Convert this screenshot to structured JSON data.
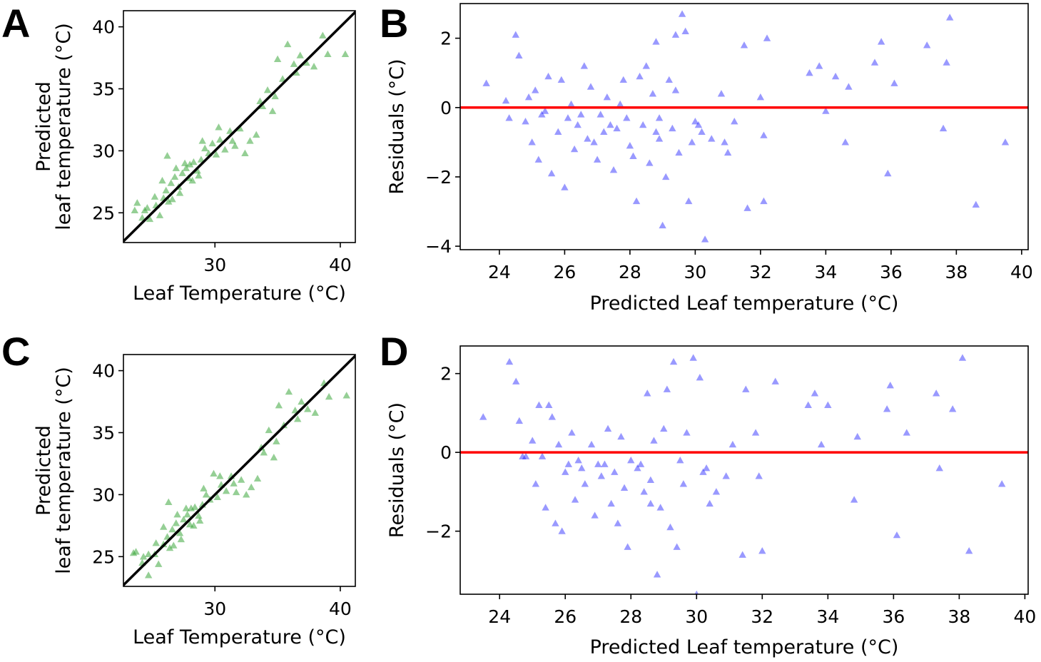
{
  "figure": {
    "colors": {
      "observed_marker": "#2ca02c",
      "residual_marker": "#0000ff",
      "zero_line": "#ff0000",
      "identity_line": "#000000"
    }
  },
  "chart_data": [
    {
      "id": "A",
      "panel_label": "A",
      "type": "scatter",
      "xlabel": "Leaf Temperature (°C)",
      "ylabel": [
        "Predicted",
        "leaf temperature (°C)"
      ],
      "xlim": [
        22.7,
        41.2
      ],
      "ylim": [
        22.6,
        41.3
      ],
      "xticks": [
        30,
        40
      ],
      "yticks": [
        25,
        30,
        35,
        40
      ],
      "marker": "triangle",
      "reference_line": {
        "kind": "identity",
        "x": [
          22.7,
          41.2
        ],
        "y": [
          22.7,
          41.2
        ]
      },
      "points": [
        [
          23.8,
          25.8
        ],
        [
          24.4,
          25.2
        ],
        [
          24.8,
          24.5
        ],
        [
          25.3,
          25.6
        ],
        [
          25.6,
          24.8
        ],
        [
          25.9,
          26.2
        ],
        [
          26.1,
          26.8
        ],
        [
          26.3,
          25.9
        ],
        [
          26.5,
          27.4
        ],
        [
          26.8,
          27.9
        ],
        [
          27.1,
          27.1
        ],
        [
          27.4,
          28.2
        ],
        [
          27.7,
          28.6
        ],
        [
          28.0,
          28.9
        ],
        [
          28.3,
          29.1
        ],
        [
          28.6,
          28.4
        ],
        [
          28.9,
          29.3
        ],
        [
          29.2,
          30.2
        ],
        [
          29.5,
          29.8
        ],
        [
          29.8,
          30.6
        ],
        [
          30.1,
          29.7
        ],
        [
          30.4,
          30.9
        ],
        [
          30.8,
          30.1
        ],
        [
          31.2,
          31.6
        ],
        [
          31.6,
          30.4
        ],
        [
          32.0,
          31.8
        ],
        [
          32.4,
          29.8
        ],
        [
          32.8,
          30.8
        ],
        [
          33.3,
          31.3
        ],
        [
          33.8,
          33.6
        ],
        [
          34.2,
          34.9
        ],
        [
          34.6,
          33.2
        ],
        [
          35.0,
          37.4
        ],
        [
          35.4,
          35.8
        ],
        [
          35.8,
          38.6
        ],
        [
          36.3,
          37.0
        ],
        [
          36.8,
          37.7
        ],
        [
          37.3,
          37.1
        ],
        [
          37.9,
          36.8
        ],
        [
          38.6,
          39.3
        ],
        [
          39.0,
          37.8
        ],
        [
          40.4,
          37.8
        ],
        [
          36.5,
          36.3
        ],
        [
          34.8,
          34.4
        ],
        [
          33.6,
          34.0
        ],
        [
          26.6,
          26.1
        ],
        [
          27.2,
          26.6
        ],
        [
          27.9,
          27.8
        ],
        [
          28.7,
          28.0
        ],
        [
          25.2,
          26.3
        ],
        [
          24.6,
          25.4
        ],
        [
          25.8,
          27.6
        ],
        [
          26.9,
          28.6
        ],
        [
          28.2,
          27.6
        ],
        [
          29.0,
          30.8
        ],
        [
          30.3,
          31.9
        ],
        [
          31.4,
          30.8
        ],
        [
          26.2,
          29.6
        ],
        [
          27.6,
          29.0
        ],
        [
          24.2,
          24.6
        ],
        [
          23.6,
          25.2
        ]
      ]
    },
    {
      "id": "B",
      "panel_label": "B",
      "type": "scatter",
      "xlabel": "Predicted Leaf temperature (°C)",
      "ylabel": [
        "Residuals (°C)"
      ],
      "xlim": [
        22.8,
        40.2
      ],
      "ylim": [
        -4.1,
        3.0
      ],
      "xticks": [
        24,
        26,
        28,
        30,
        32,
        34,
        36,
        38,
        40
      ],
      "yticks": [
        -4,
        -2,
        0,
        2
      ],
      "ytick_labels": [
        "−4",
        "−2",
        "0",
        "2"
      ],
      "marker": "triangle",
      "reference_line": {
        "kind": "zero",
        "y": 0
      },
      "points": [
        [
          23.6,
          0.7
        ],
        [
          24.2,
          0.2
        ],
        [
          24.5,
          2.1
        ],
        [
          24.6,
          1.5
        ],
        [
          24.8,
          -0.4
        ],
        [
          25.0,
          -1.0
        ],
        [
          25.1,
          0.5
        ],
        [
          25.3,
          -0.2
        ],
        [
          25.5,
          0.9
        ],
        [
          25.6,
          -1.9
        ],
        [
          25.8,
          -0.7
        ],
        [
          25.9,
          0.8
        ],
        [
          26.0,
          -2.3
        ],
        [
          26.2,
          0.1
        ],
        [
          26.3,
          -1.2
        ],
        [
          26.4,
          -0.5
        ],
        [
          26.6,
          1.2
        ],
        [
          26.7,
          -0.9
        ],
        [
          26.8,
          0.6
        ],
        [
          27.0,
          -1.5
        ],
        [
          27.1,
          -0.2
        ],
        [
          27.2,
          -0.7
        ],
        [
          27.3,
          0.3
        ],
        [
          27.5,
          -1.8
        ],
        [
          27.6,
          -0.6
        ],
        [
          27.8,
          0.8
        ],
        [
          27.9,
          -0.3
        ],
        [
          28.0,
          -1.1
        ],
        [
          28.1,
          -1.4
        ],
        [
          28.2,
          -2.7
        ],
        [
          28.3,
          0.9
        ],
        [
          28.4,
          -0.5
        ],
        [
          28.5,
          1.2
        ],
        [
          28.6,
          -1.6
        ],
        [
          28.7,
          0.4
        ],
        [
          28.8,
          1.9
        ],
        [
          28.9,
          -0.9
        ],
        [
          29.0,
          -3.4
        ],
        [
          29.1,
          -2.0
        ],
        [
          29.2,
          0.8
        ],
        [
          29.3,
          -0.6
        ],
        [
          29.4,
          2.1
        ],
        [
          29.5,
          -1.3
        ],
        [
          29.6,
          2.7
        ],
        [
          29.7,
          2.2
        ],
        [
          29.8,
          -2.7
        ],
        [
          30.0,
          -0.4
        ],
        [
          30.2,
          -0.7
        ],
        [
          30.3,
          -3.8
        ],
        [
          30.5,
          -0.9
        ],
        [
          30.8,
          0.4
        ],
        [
          31.0,
          -1.3
        ],
        [
          31.2,
          -0.4
        ],
        [
          31.5,
          1.8
        ],
        [
          31.6,
          -2.9
        ],
        [
          32.0,
          0.3
        ],
        [
          32.1,
          -0.8
        ],
        [
          32.2,
          2.0
        ],
        [
          32.1,
          -2.7
        ],
        [
          33.5,
          1.0
        ],
        [
          33.8,
          1.2
        ],
        [
          34.0,
          -0.1
        ],
        [
          34.3,
          0.9
        ],
        [
          34.6,
          -1.0
        ],
        [
          34.7,
          0.6
        ],
        [
          35.5,
          1.3
        ],
        [
          35.7,
          1.9
        ],
        [
          35.9,
          -1.9
        ],
        [
          36.1,
          0.7
        ],
        [
          37.1,
          1.8
        ],
        [
          37.6,
          -0.6
        ],
        [
          37.7,
          1.3
        ],
        [
          37.8,
          2.6
        ],
        [
          38.6,
          -2.8
        ],
        [
          39.5,
          -1.0
        ],
        [
          24.9,
          0.3
        ],
        [
          25.4,
          -0.1
        ],
        [
          26.5,
          -0.2
        ],
        [
          27.4,
          -0.5
        ],
        [
          28.8,
          -0.7
        ],
        [
          29.9,
          -1.0
        ],
        [
          24.3,
          -0.3
        ],
        [
          26.1,
          -0.3
        ],
        [
          27.7,
          0.1
        ],
        [
          28.9,
          -0.3
        ],
        [
          29.4,
          0.5
        ],
        [
          30.1,
          -0.5
        ],
        [
          30.9,
          -1.0
        ],
        [
          25.2,
          -1.5
        ],
        [
          26.9,
          -1.0
        ]
      ]
    },
    {
      "id": "C",
      "panel_label": "C",
      "type": "scatter",
      "xlabel": "Leaf Temperature (°C)",
      "ylabel": [
        "Predicted",
        "leaf temperature (°C)"
      ],
      "xlim": [
        22.7,
        41.2
      ],
      "ylim": [
        22.6,
        41.3
      ],
      "xticks": [
        30,
        40
      ],
      "yticks": [
        25,
        30,
        35,
        40
      ],
      "marker": "triangle",
      "reference_line": {
        "kind": "identity",
        "x": [
          22.7,
          41.2
        ],
        "y": [
          22.7,
          41.2
        ]
      },
      "points": [
        [
          23.7,
          25.4
        ],
        [
          24.3,
          25.0
        ],
        [
          24.7,
          23.5
        ],
        [
          25.2,
          25.2
        ],
        [
          25.5,
          24.4
        ],
        [
          25.9,
          26.0
        ],
        [
          26.2,
          26.6
        ],
        [
          26.4,
          25.7
        ],
        [
          26.6,
          27.2
        ],
        [
          26.9,
          27.7
        ],
        [
          27.2,
          26.9
        ],
        [
          27.5,
          28.0
        ],
        [
          27.8,
          28.4
        ],
        [
          28.1,
          28.9
        ],
        [
          28.4,
          29.0
        ],
        [
          28.7,
          28.3
        ],
        [
          29.0,
          29.2
        ],
        [
          29.3,
          30.0
        ],
        [
          29.6,
          29.6
        ],
        [
          29.9,
          31.7
        ],
        [
          30.2,
          29.8
        ],
        [
          30.5,
          30.8
        ],
        [
          30.9,
          30.3
        ],
        [
          31.3,
          31.5
        ],
        [
          31.7,
          30.2
        ],
        [
          32.1,
          31.2
        ],
        [
          32.5,
          30.0
        ],
        [
          32.9,
          30.6
        ],
        [
          33.4,
          31.3
        ],
        [
          33.9,
          33.4
        ],
        [
          34.3,
          35.2
        ],
        [
          34.7,
          33.0
        ],
        [
          35.1,
          37.2
        ],
        [
          35.5,
          35.6
        ],
        [
          35.9,
          38.3
        ],
        [
          36.4,
          36.8
        ],
        [
          36.9,
          37.5
        ],
        [
          37.4,
          36.9
        ],
        [
          38.0,
          36.6
        ],
        [
          38.7,
          39.0
        ],
        [
          39.1,
          37.9
        ],
        [
          40.5,
          38.0
        ],
        [
          36.6,
          36.1
        ],
        [
          34.9,
          34.3
        ],
        [
          33.7,
          33.8
        ],
        [
          26.7,
          25.9
        ],
        [
          27.3,
          26.4
        ],
        [
          28.0,
          27.6
        ],
        [
          28.8,
          27.9
        ],
        [
          25.3,
          26.1
        ],
        [
          24.7,
          25.2
        ],
        [
          25.9,
          27.4
        ],
        [
          27.0,
          28.4
        ],
        [
          28.3,
          27.5
        ],
        [
          29.1,
          30.5
        ],
        [
          30.4,
          31.5
        ],
        [
          31.5,
          30.9
        ],
        [
          26.3,
          29.4
        ],
        [
          27.7,
          28.9
        ],
        [
          24.2,
          24.5
        ],
        [
          23.5,
          25.3
        ]
      ]
    },
    {
      "id": "D",
      "panel_label": "D",
      "type": "scatter",
      "xlabel": "Predicted Leaf temperature (°C)",
      "ylabel": [
        "Residuals (°C)"
      ],
      "xlim": [
        22.8,
        40.1
      ],
      "ylim": [
        -3.6,
        2.7
      ],
      "xticks": [
        24,
        26,
        28,
        30,
        32,
        34,
        36,
        38,
        40
      ],
      "yticks": [
        -2,
        0,
        2
      ],
      "ytick_labels": [
        "−2",
        "0",
        "2"
      ],
      "marker": "triangle",
      "reference_line": {
        "kind": "zero",
        "y": 0
      },
      "points": [
        [
          23.5,
          0.9
        ],
        [
          24.3,
          2.3
        ],
        [
          24.5,
          1.8
        ],
        [
          24.6,
          0.8
        ],
        [
          24.8,
          -0.1
        ],
        [
          25.0,
          0.3
        ],
        [
          25.1,
          -0.8
        ],
        [
          25.2,
          1.2
        ],
        [
          25.4,
          -1.4
        ],
        [
          25.5,
          1.2
        ],
        [
          25.6,
          0.9
        ],
        [
          25.7,
          -1.8
        ],
        [
          25.8,
          0.2
        ],
        [
          25.9,
          -2.0
        ],
        [
          26.0,
          -0.5
        ],
        [
          26.2,
          0.5
        ],
        [
          26.3,
          -1.2
        ],
        [
          26.5,
          -0.4
        ],
        [
          26.6,
          -0.8
        ],
        [
          26.8,
          0.2
        ],
        [
          26.9,
          -1.6
        ],
        [
          27.0,
          -0.3
        ],
        [
          27.1,
          -0.6
        ],
        [
          27.3,
          0.6
        ],
        [
          27.4,
          -1.3
        ],
        [
          27.6,
          -1.8
        ],
        [
          27.7,
          0.4
        ],
        [
          27.8,
          -0.9
        ],
        [
          27.9,
          -2.4
        ],
        [
          28.0,
          -0.2
        ],
        [
          28.2,
          -0.4
        ],
        [
          28.4,
          -1.0
        ],
        [
          28.5,
          1.5
        ],
        [
          28.6,
          -0.7
        ],
        [
          28.7,
          0.3
        ],
        [
          28.8,
          -3.1
        ],
        [
          28.9,
          -1.4
        ],
        [
          29.0,
          0.6
        ],
        [
          29.1,
          1.6
        ],
        [
          29.2,
          -1.9
        ],
        [
          29.3,
          2.3
        ],
        [
          29.4,
          -2.4
        ],
        [
          29.7,
          0.5
        ],
        [
          29.9,
          2.4
        ],
        [
          30.0,
          -3.6
        ],
        [
          30.1,
          1.9
        ],
        [
          30.2,
          -0.5
        ],
        [
          30.4,
          -1.3
        ],
        [
          30.6,
          -1.0
        ],
        [
          30.9,
          -0.6
        ],
        [
          31.1,
          0.2
        ],
        [
          31.4,
          -2.6
        ],
        [
          31.5,
          1.6
        ],
        [
          31.8,
          0.5
        ],
        [
          31.9,
          -0.6
        ],
        [
          32.0,
          -2.5
        ],
        [
          32.4,
          1.8
        ],
        [
          33.4,
          1.2
        ],
        [
          33.6,
          1.5
        ],
        [
          33.8,
          0.2
        ],
        [
          34.0,
          1.2
        ],
        [
          34.8,
          -1.2
        ],
        [
          34.9,
          0.4
        ],
        [
          35.8,
          1.1
        ],
        [
          35.9,
          1.7
        ],
        [
          36.1,
          -2.1
        ],
        [
          36.4,
          0.5
        ],
        [
          37.3,
          1.5
        ],
        [
          37.4,
          -0.4
        ],
        [
          37.8,
          1.1
        ],
        [
          38.1,
          2.4
        ],
        [
          38.3,
          -2.5
        ],
        [
          39.3,
          -0.8
        ],
        [
          25.3,
          -0.1
        ],
        [
          26.4,
          -0.2
        ],
        [
          27.5,
          -0.5
        ],
        [
          28.3,
          -0.3
        ],
        [
          29.6,
          -0.8
        ],
        [
          30.3,
          -0.4
        ],
        [
          24.7,
          -0.1
        ],
        [
          26.1,
          -0.3
        ],
        [
          27.2,
          -0.3
        ],
        [
          28.6,
          -1.3
        ],
        [
          29.5,
          -0.2
        ]
      ]
    }
  ]
}
